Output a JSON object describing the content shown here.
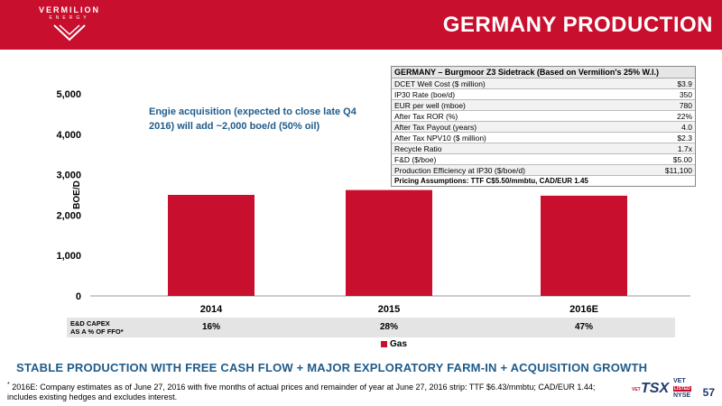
{
  "header": {
    "logo_name": "VERMILION",
    "logo_sub": "ENERGY",
    "title": "GERMANY PRODUCTION"
  },
  "colors": {
    "brand": "#c8102e",
    "accent": "#1f5b8a",
    "bar": "#c8102e"
  },
  "table": {
    "title": "GERMANY – Burgmoor Z3 Sidetrack (Based on Vermilion's 25% W.I.)",
    "rows": [
      {
        "label": "DCET Well Cost ($ million)",
        "value": "$3.9"
      },
      {
        "label": "IP30 Rate (boe/d)",
        "value": "350"
      },
      {
        "label": "EUR per well (mboe)",
        "value": "780"
      },
      {
        "label": "After Tax ROR (%)",
        "value": "22%"
      },
      {
        "label": "After Tax Payout (years)",
        "value": "4.0"
      },
      {
        "label": "After Tax NPV10 ($ million)",
        "value": "$2.3"
      },
      {
        "label": "Recycle Ratio",
        "value": "1.7x"
      },
      {
        "label": "F&D ($/boe)",
        "value": "$5.00"
      },
      {
        "label": "Production Efficiency at IP30 ($/boe/d)",
        "value": "$11,100"
      }
    ],
    "footer": "Pricing Assumptions: TTF C$5.50/mmbtu, CAD/EUR 1.45"
  },
  "annotation": "Engie acquisition (expected to close late Q4 2016) will add ~2,000 boe/d (50% oil)",
  "chart_data": {
    "type": "bar",
    "categories": [
      "2014",
      "2015",
      "2016E"
    ],
    "series": [
      {
        "name": "Gas",
        "values": [
          2500,
          2620,
          2480
        ]
      }
    ],
    "ylabel": "BOE/D",
    "ylim": [
      0,
      5000
    ],
    "yticks": [
      "0",
      "1,000",
      "2,000",
      "3,000",
      "4,000",
      "5,000"
    ],
    "ytick_values": [
      0,
      1000,
      2000,
      3000,
      4000,
      5000
    ],
    "grid": false,
    "legend": "bottom"
  },
  "capex": {
    "label_line1": "E&D CAPEX",
    "label_line2": "AS A % OF FFO*",
    "values": [
      "16%",
      "28%",
      "47%"
    ]
  },
  "banner": "STABLE PRODUCTION WITH FREE CASH FLOW + MAJOR EXPLORATORY FARM-IN + ACQUISITION GROWTH",
  "footnote": {
    "marker": "*",
    "text": "2016E: Company estimates as of June 27, 2016 with five months of actual prices and remainder of year at June 27, 2016 strip: TTF $6.43/mmbtu; CAD/EUR 1.44; includes existing hedges and excludes interest."
  },
  "ticker": {
    "prefix": "VET",
    "tsx": "TSX",
    "vet": "VET",
    "listed": "LISTED",
    "nyse": "NYSE"
  },
  "page_number": "57"
}
